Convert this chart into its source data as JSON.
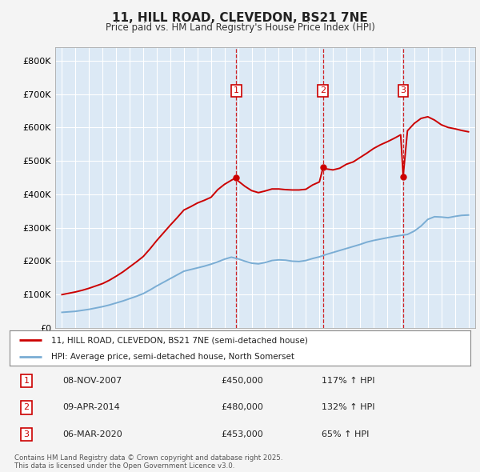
{
  "title": "11, HILL ROAD, CLEVEDON, BS21 7NE",
  "subtitle": "Price paid vs. HM Land Registry's House Price Index (HPI)",
  "legend_line1": "11, HILL ROAD, CLEVEDON, BS21 7NE (semi-detached house)",
  "legend_line2": "HPI: Average price, semi-detached house, North Somerset",
  "footer": "Contains HM Land Registry data © Crown copyright and database right 2025.\nThis data is licensed under the Open Government Licence v3.0.",
  "transactions": [
    {
      "num": 1,
      "date": "08-NOV-2007",
      "price": 450000,
      "hpi_pct": "117%",
      "arrow": "↑"
    },
    {
      "num": 2,
      "date": "09-APR-2014",
      "price": 480000,
      "hpi_pct": "132%",
      "arrow": "↑"
    },
    {
      "num": 3,
      "date": "06-MAR-2020",
      "price": 453000,
      "hpi_pct": "65%",
      "arrow": "↑"
    }
  ],
  "transaction_years": [
    2007.86,
    2014.27,
    2020.18
  ],
  "transaction_prices": [
    450000,
    480000,
    453000
  ],
  "xlim": [
    1994.5,
    2025.5
  ],
  "ylim": [
    0,
    840000
  ],
  "yticks": [
    0,
    100000,
    200000,
    300000,
    400000,
    500000,
    600000,
    700000,
    800000
  ],
  "ytick_labels": [
    "£0",
    "£100K",
    "£200K",
    "£300K",
    "£400K",
    "£500K",
    "£600K",
    "£700K",
    "£800K"
  ],
  "fig_bg_color": "#f4f4f4",
  "plot_bg_color": "#dce9f5",
  "red_line_color": "#cc0000",
  "blue_line_color": "#7aadd4",
  "dashed_color": "#cc0000",
  "marker_box_color": "#cc0000",
  "grid_color": "#ffffff",
  "hpi_years": [
    1995.0,
    1995.5,
    1996.0,
    1996.5,
    1997.0,
    1997.5,
    1998.0,
    1998.5,
    1999.0,
    1999.5,
    2000.0,
    2000.5,
    2001.0,
    2001.5,
    2002.0,
    2002.5,
    2003.0,
    2003.5,
    2004.0,
    2004.5,
    2005.0,
    2005.5,
    2006.0,
    2006.5,
    2007.0,
    2007.5,
    2008.0,
    2008.5,
    2009.0,
    2009.5,
    2010.0,
    2010.5,
    2011.0,
    2011.5,
    2012.0,
    2012.5,
    2013.0,
    2013.5,
    2014.0,
    2014.5,
    2015.0,
    2015.5,
    2016.0,
    2016.5,
    2017.0,
    2017.5,
    2018.0,
    2018.5,
    2019.0,
    2019.5,
    2020.0,
    2020.5,
    2021.0,
    2021.5,
    2022.0,
    2022.5,
    2023.0,
    2023.5,
    2024.0,
    2024.5,
    2025.0
  ],
  "hpi_values": [
    47000,
    48500,
    50000,
    53000,
    56000,
    60000,
    64000,
    69000,
    75000,
    81000,
    88000,
    95000,
    103000,
    114000,
    126000,
    137000,
    148000,
    159000,
    170000,
    175000,
    180000,
    185000,
    191000,
    198000,
    206000,
    212000,
    207000,
    200000,
    194000,
    192000,
    196000,
    202000,
    204000,
    203000,
    200000,
    199000,
    202000,
    208000,
    213000,
    220000,
    226000,
    232000,
    238000,
    244000,
    250000,
    257000,
    262000,
    266000,
    270000,
    274000,
    277000,
    280000,
    290000,
    305000,
    325000,
    333000,
    332000,
    330000,
    334000,
    337000,
    338000
  ],
  "property_years": [
    1995.0,
    1995.5,
    1996.0,
    1996.5,
    1997.0,
    1997.5,
    1998.0,
    1998.5,
    1999.0,
    1999.5,
    2000.0,
    2000.5,
    2001.0,
    2001.5,
    2002.0,
    2002.5,
    2003.0,
    2003.5,
    2004.0,
    2004.5,
    2005.0,
    2005.5,
    2006.0,
    2006.5,
    2007.0,
    2007.5,
    2007.86,
    2008.0,
    2008.5,
    2009.0,
    2009.5,
    2010.0,
    2010.5,
    2011.0,
    2011.5,
    2012.0,
    2012.5,
    2013.0,
    2013.5,
    2014.0,
    2014.27,
    2014.5,
    2015.0,
    2015.5,
    2016.0,
    2016.5,
    2017.0,
    2017.5,
    2018.0,
    2018.5,
    2019.0,
    2019.5,
    2020.0,
    2020.18,
    2020.5,
    2021.0,
    2021.5,
    2022.0,
    2022.5,
    2023.0,
    2023.5,
    2024.0,
    2024.5,
    2025.0
  ],
  "property_values": [
    100000,
    104000,
    108000,
    113000,
    119000,
    126000,
    133000,
    143000,
    155000,
    168000,
    183000,
    198000,
    214000,
    237000,
    262000,
    285000,
    308000,
    330000,
    353000,
    363000,
    374000,
    382000,
    391000,
    414000,
    430000,
    442000,
    450000,
    440000,
    424000,
    411000,
    405000,
    410000,
    416000,
    416000,
    414000,
    413000,
    413000,
    415000,
    428000,
    437000,
    480000,
    476000,
    473000,
    478000,
    490000,
    497000,
    510000,
    523000,
    537000,
    548000,
    557000,
    567000,
    578000,
    453000,
    590000,
    612000,
    627000,
    632000,
    622000,
    608000,
    600000,
    596000,
    591000,
    587000
  ]
}
